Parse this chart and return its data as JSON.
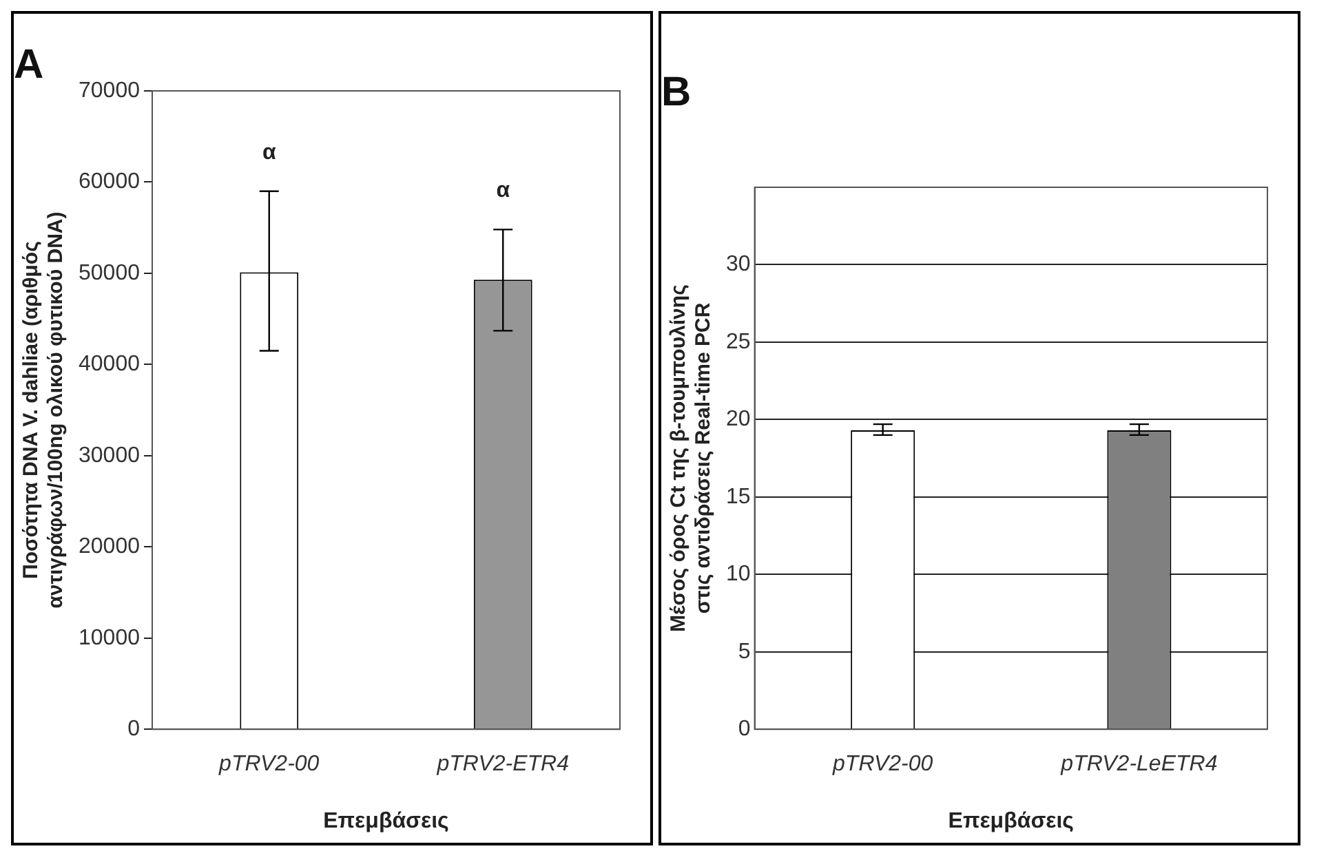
{
  "chart_data": [
    {
      "type": "bar",
      "title": "A",
      "ylabel": "Ποσότητα DNA V. dahliae (αριθμός\nαντιγράφων/100ng ολικού φυτικού DNA)",
      "xlabel": "Επεμβάσεις",
      "categories": [
        "pTRV2-00",
        "pTRV2-ETR4"
      ],
      "values": [
        50100,
        49300
      ],
      "colors": [
        "#ffffff",
        "#969696"
      ],
      "errors": [
        [
          41500,
          59000
        ],
        [
          43700,
          54800
        ]
      ],
      "ylim": [
        0,
        70000
      ],
      "yticks": [
        0,
        10000,
        20000,
        30000,
        40000,
        50000,
        60000,
        70000
      ],
      "grid": false,
      "legend": false,
      "annotations": [
        "α",
        "α"
      ]
    },
    {
      "type": "bar",
      "title": "B",
      "ylabel": "Μέσος όρος Ct της β-τουμπουλίνης\nστις αντιδράσεις Real-time PCR",
      "xlabel": "Επεμβάσεις",
      "categories": [
        "pTRV2-00",
        "pTRV2-LeETR4"
      ],
      "values": [
        19.3,
        19.3
      ],
      "colors": [
        "#ffffff",
        "#808080"
      ],
      "errors": [
        [
          19,
          19.7
        ],
        [
          19,
          19.7
        ]
      ],
      "ylim": [
        0,
        35
      ],
      "yticks": [
        0,
        5,
        10,
        15,
        20,
        25,
        30
      ],
      "grid": "y",
      "legend": false
    }
  ]
}
